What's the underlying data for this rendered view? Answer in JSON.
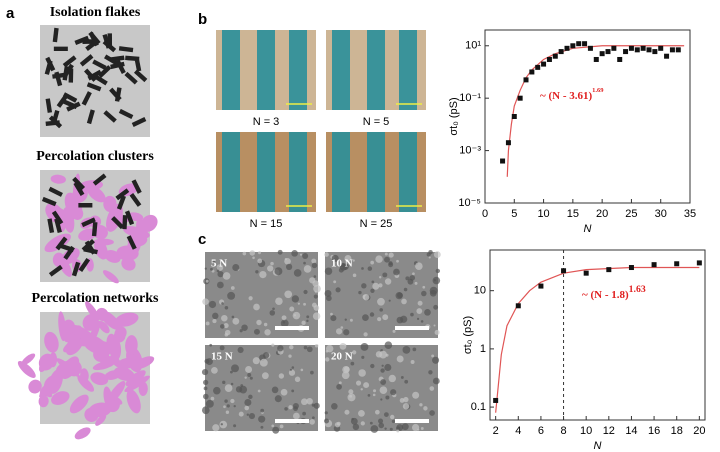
{
  "panel_a": {
    "label": "a",
    "titles": [
      "Isolation flakes",
      "Percolation clusters",
      "Percolation networks"
    ]
  },
  "panel_b": {
    "label": "b",
    "photo_labels": [
      "N = 3",
      "N = 5",
      "N = 15",
      "N = 25"
    ],
    "chart": {
      "type": "scatter",
      "xlabel": "N",
      "ylabel": "σt₀ (pS)",
      "log_y": true,
      "xlim": [
        0,
        35
      ],
      "xticks": [
        0,
        5,
        10,
        15,
        20,
        25,
        30,
        35
      ],
      "ylim": [
        1e-05,
        40
      ],
      "yticks": [
        {
          "value": 1e-05,
          "label": "10⁻⁵"
        },
        {
          "value": 0.001,
          "label": "10⁻³"
        },
        {
          "value": 0.1,
          "label": "10⁻¹"
        },
        {
          "value": 10,
          "label": "10¹"
        }
      ],
      "x": [
        3,
        4,
        5,
        6,
        7,
        8,
        9,
        10,
        11,
        12,
        13,
        14,
        15,
        16,
        17,
        18,
        19,
        20,
        21,
        22,
        23,
        24,
        25,
        26,
        27,
        28,
        29,
        30,
        31,
        32,
        33
      ],
      "values": [
        0.0004,
        0.002,
        0.02,
        0.1,
        0.5,
        1,
        1.5,
        2,
        3,
        4,
        6,
        8,
        10,
        12,
        12,
        8,
        3,
        5,
        6,
        8,
        3,
        6,
        8,
        7,
        8,
        7,
        6,
        8,
        4,
        7,
        7
      ],
      "fit": {
        "x": [
          3.8,
          4,
          4.5,
          5,
          6,
          7,
          8,
          10,
          12,
          15,
          20,
          25,
          30,
          34
        ],
        "values": [
          0.0001,
          0.001,
          0.01,
          0.05,
          0.2,
          0.6,
          1.2,
          3,
          5,
          8,
          10,
          10,
          10,
          10
        ]
      },
      "fit_label": {
        "base": "~ (N - 3.61)",
        "exponent": "1.69"
      }
    }
  },
  "panel_c": {
    "label": "c",
    "sem_labels": [
      "5 N",
      "10 N",
      "15 N",
      "20 N"
    ],
    "chart": {
      "type": "scatter",
      "xlabel": "N",
      "ylabel": "σt₀ (pS)",
      "log_y": true,
      "xlim": [
        1.5,
        20.5
      ],
      "xticks": [
        2,
        4,
        6,
        8,
        10,
        12,
        14,
        16,
        18,
        20
      ],
      "ylim": [
        0.06,
        50
      ],
      "yticks": [
        0.1,
        1,
        10
      ],
      "x": [
        2,
        4,
        6,
        8,
        10,
        12,
        14,
        16,
        18,
        20
      ],
      "values": [
        0.13,
        5.5,
        12,
        22,
        20,
        23,
        25,
        28,
        29,
        30
      ],
      "threshold": 8,
      "fit": {
        "x": [
          2,
          2.5,
          3,
          4,
          5,
          6,
          8,
          10,
          14,
          20
        ],
        "values": [
          0.08,
          0.8,
          2.5,
          6,
          10,
          14,
          20,
          23,
          25,
          25
        ]
      },
      "fit_label": {
        "base": "~ (N - 1.8)",
        "exponent": "1.63"
      }
    }
  }
}
